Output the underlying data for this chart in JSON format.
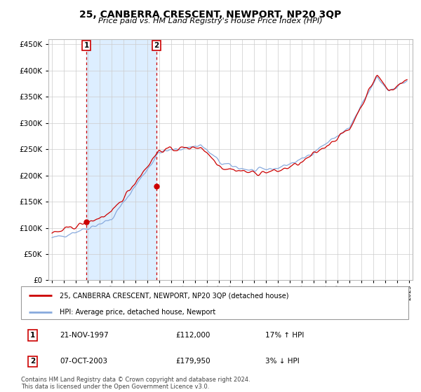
{
  "title": "25, CANBERRA CRESCENT, NEWPORT, NP20 3QP",
  "subtitle": "Price paid vs. HM Land Registry's House Price Index (HPI)",
  "legend_line1": "25, CANBERRA CRESCENT, NEWPORT, NP20 3QP (detached house)",
  "legend_line2": "HPI: Average price, detached house, Newport",
  "footer": "Contains HM Land Registry data © Crown copyright and database right 2024.\nThis data is licensed under the Open Government Licence v3.0.",
  "transactions": [
    {
      "label": "1",
      "date": "21-NOV-1997",
      "price": 112000,
      "hpi_pct": "17% ↑ HPI",
      "x": 1997.89
    },
    {
      "label": "2",
      "date": "07-OCT-2003",
      "price": 179950,
      "hpi_pct": "3% ↓ HPI",
      "x": 2003.77
    }
  ],
  "sale_color": "#cc0000",
  "hpi_color": "#88aadd",
  "shade_color": "#ddeeff",
  "background_color": "#ffffff",
  "grid_color": "#cccccc",
  "ylim": [
    0,
    460000
  ],
  "xlim_start": 1994.7,
  "xlim_end": 2025.3,
  "yticks": [
    0,
    50000,
    100000,
    150000,
    200000,
    250000,
    300000,
    350000,
    400000,
    450000
  ],
  "xticks": [
    1995,
    1996,
    1997,
    1998,
    1999,
    2000,
    2001,
    2002,
    2003,
    2004,
    2005,
    2006,
    2007,
    2008,
    2009,
    2010,
    2011,
    2012,
    2013,
    2014,
    2015,
    2016,
    2017,
    2018,
    2019,
    2020,
    2021,
    2022,
    2023,
    2024,
    2025
  ]
}
